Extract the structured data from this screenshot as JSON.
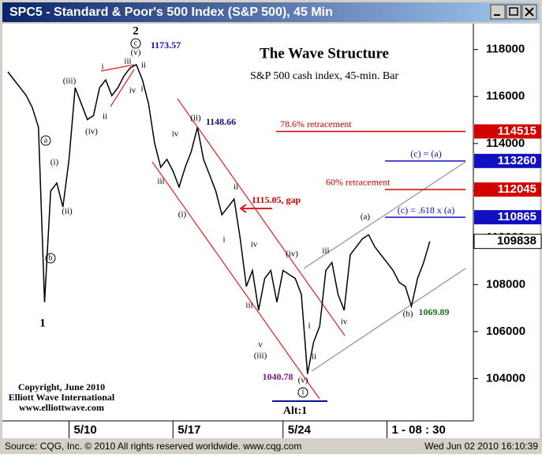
{
  "window_title": "SPC5 - Standard & Poor's 500 Index (S&P 500), 45 Min",
  "status_left": "Source: CQG, Inc. © 2010 All rights reserved worldwide. www.cqg.com",
  "status_right": "Wed Jun 02 2010 16:10:39",
  "copyright": [
    "Copyright, June 2010",
    "Elliott Wave International",
    "www.elliottwave.com"
  ],
  "chart_data": {
    "type": "line",
    "title": "The Wave Structure",
    "subtitle": "S&P 500 cash index, 45-min. Bar",
    "color": "#000000",
    "categories": [
      null,
      null,
      null,
      null,
      null,
      null,
      null,
      null,
      null,
      null,
      "5/10",
      null,
      null,
      null,
      null,
      null,
      null,
      null,
      null,
      null,
      null,
      null,
      null,
      null,
      null,
      null,
      null,
      "5/17",
      null,
      null,
      null,
      null,
      null,
      null,
      null,
      null,
      null,
      null,
      null,
      null,
      null,
      null,
      null,
      null,
      null,
      "5/24",
      null,
      null,
      null,
      null,
      null,
      null,
      null,
      null,
      null,
      null,
      null,
      null,
      null,
      null,
      null,
      null,
      "1 - 08 : 30",
      null,
      null,
      null,
      null,
      null,
      null,
      null
    ],
    "values": [
      117050,
      116710,
      116380,
      116040,
      115530,
      114690,
      107250,
      111980,
      112320,
      111300,
      113330,
      116380,
      115700,
      115020,
      115190,
      116380,
      116710,
      116040,
      116380,
      116880,
      117220,
      117360,
      116710,
      115700,
      114010,
      112990,
      113330,
      112830,
      112150,
      112990,
      113670,
      114690,
      113330,
      112660,
      111980,
      110970,
      111300,
      111640,
      109950,
      107920,
      108600,
      106910,
      108260,
      108600,
      107250,
      108600,
      108430,
      108260,
      107580,
      104200,
      105550,
      106230,
      108600,
      108940,
      107580,
      106910,
      109270,
      109610,
      109950,
      110120,
      109610,
      109270,
      108940,
      108600,
      108090,
      107920,
      107080,
      108260,
      108940,
      109838
    ],
    "ylim": [
      102200,
      119100
    ],
    "yticks": [
      104000,
      106000,
      108000,
      110000,
      112000,
      114000,
      116000,
      118000
    ],
    "levels": [
      {
        "name": "78.6% retracement",
        "value": 114515,
        "color": "#d40000"
      },
      {
        "name": "(c) = (a)",
        "value": 113260,
        "color": "#1010c0"
      },
      {
        "name": "60% retracement",
        "value": 112045,
        "color": "#d40000"
      },
      {
        "name": "(c) = .618 x (a)",
        "value": 110865,
        "color": "#1010c0"
      }
    ],
    "last_value": 109838,
    "wave_labels": [
      "2",
      "c",
      "(v)",
      "1173.57",
      "i",
      "ii",
      "iii",
      "iv",
      "ii",
      "i",
      "(iii)",
      "(iv)",
      "(ii)",
      "1148.66",
      "iv",
      "iii",
      "(i)",
      "ii",
      "1115.05, gap",
      "i",
      "iv",
      "iii",
      "v",
      "(iii)",
      "(iv)",
      "iii",
      "iv",
      "i",
      "ii",
      "(v)",
      "1040.78",
      "i",
      "Alt:1",
      "(a)",
      "(b)",
      "1069.89",
      "1",
      "a",
      "b",
      "(i)",
      "(ii)"
    ]
  }
}
